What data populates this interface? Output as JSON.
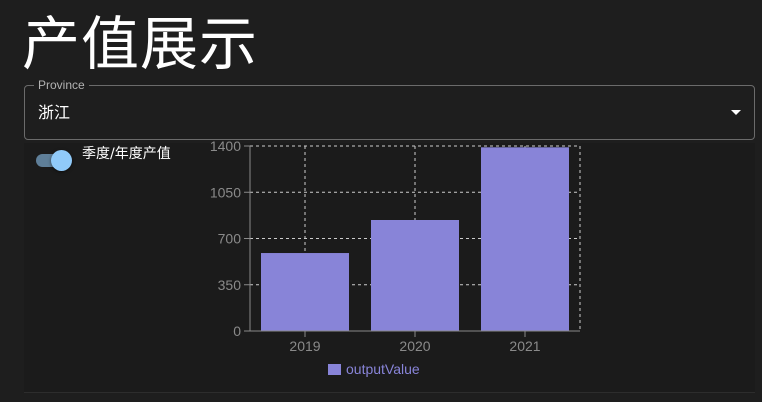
{
  "page": {
    "title": "产值展示"
  },
  "province_select": {
    "label": "Province",
    "value": "浙江"
  },
  "toggle": {
    "label": "季度/年度产值",
    "checked": true,
    "track_color": "#5f7f99",
    "thumb_color": "#90caf9"
  },
  "colors": {
    "background": "#1e1e1e",
    "bar": "#8884d8",
    "grid": "#cccccc",
    "axis_text": "#8a8a8a"
  },
  "chart_data": {
    "type": "bar",
    "categories": [
      "2019",
      "2020",
      "2021"
    ],
    "series": [
      {
        "name": "outputValue",
        "values": [
          590,
          840,
          1390
        ]
      }
    ],
    "yticks": [
      0,
      350,
      700,
      1050,
      1400
    ],
    "ylim": [
      0,
      1400
    ],
    "grid": "dashed",
    "legend": "bottom",
    "title": "",
    "xlabel": "",
    "ylabel": ""
  }
}
